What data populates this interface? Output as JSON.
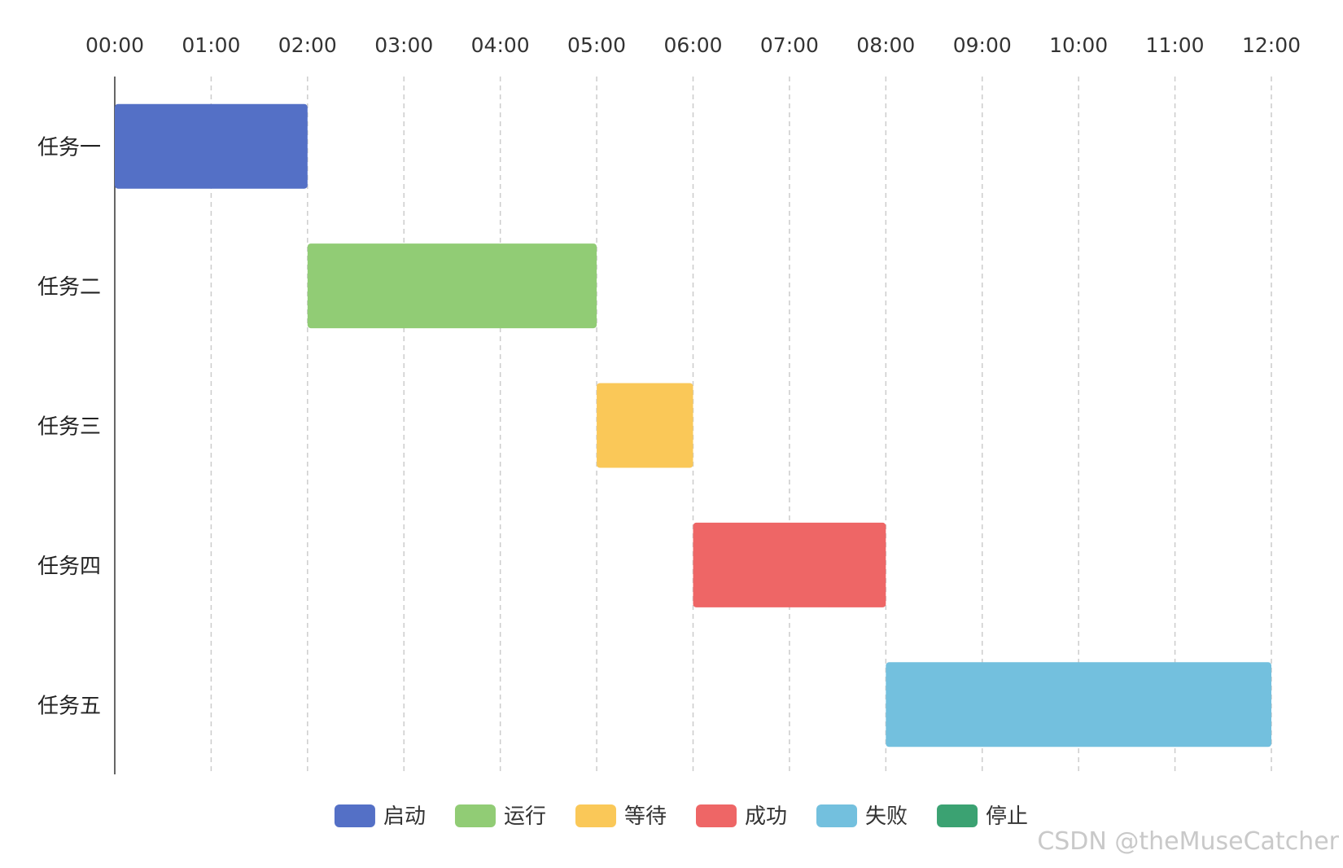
{
  "chart_data": {
    "type": "bar",
    "orientation": "horizontal-gantt",
    "x_axis": {
      "ticks": [
        "00:00",
        "01:00",
        "02:00",
        "03:00",
        "04:00",
        "05:00",
        "06:00",
        "07:00",
        "08:00",
        "09:00",
        "10:00",
        "11:00",
        "12:00"
      ],
      "range_hours": [
        0,
        12
      ],
      "position": "top",
      "grid": "dashed"
    },
    "categories": [
      "任务一",
      "任务二",
      "任务三",
      "任务四",
      "任务五"
    ],
    "tasks": [
      {
        "name": "任务一",
        "start": "00:00",
        "end": "02:00",
        "status": "启动"
      },
      {
        "name": "任务二",
        "start": "02:00",
        "end": "05:00",
        "status": "运行"
      },
      {
        "name": "任务三",
        "start": "05:00",
        "end": "06:00",
        "status": "等待"
      },
      {
        "name": "任务四",
        "start": "06:00",
        "end": "08:00",
        "status": "成功"
      },
      {
        "name": "任务五",
        "start": "08:00",
        "end": "12:00",
        "status": "失败"
      }
    ],
    "legend": {
      "placement": "bottom-center",
      "items": [
        {
          "label": "启动",
          "color": "#5470c6"
        },
        {
          "label": "运行",
          "color": "#91cc75"
        },
        {
          "label": "等待",
          "color": "#fac858"
        },
        {
          "label": "成功",
          "color": "#ee6666"
        },
        {
          "label": "失败",
          "color": "#73c0de"
        },
        {
          "label": "停止",
          "color": "#3ba272"
        }
      ]
    },
    "watermark": "CSDN @theMuseCatcher"
  }
}
